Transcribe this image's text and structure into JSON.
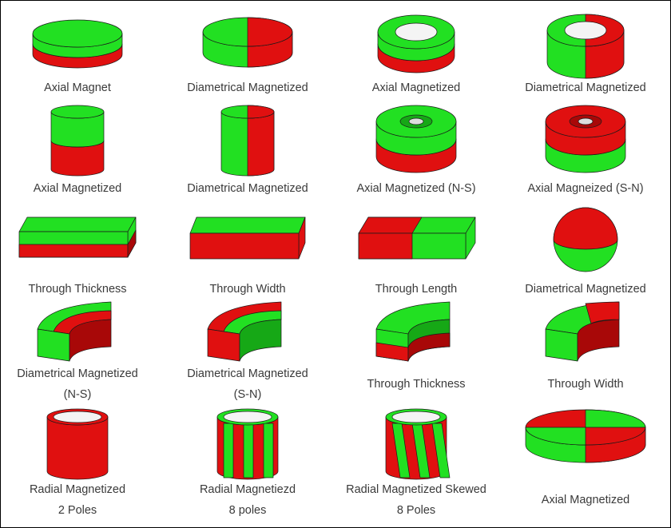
{
  "rows": [
    [
      {
        "lines": [
          "Axial Magnet"
        ]
      },
      {
        "lines": [
          "Diametrical Magnetized"
        ]
      },
      {
        "lines": [
          "Axial Magnetized"
        ]
      },
      {
        "lines": [
          "Diametrical Magnetized"
        ]
      }
    ],
    [
      {
        "lines": [
          "Axial Magnetized"
        ]
      },
      {
        "lines": [
          "Diametrical Magnetized"
        ]
      },
      {
        "lines": [
          "Axial Magnetized (N-S)"
        ]
      },
      {
        "lines": [
          "Axial Magneized (S-N)"
        ]
      }
    ],
    [
      {
        "lines": [
          "Through Thickness"
        ]
      },
      {
        "lines": [
          "Through Width"
        ]
      },
      {
        "lines": [
          "Through Length"
        ]
      },
      {
        "lines": [
          "Diametrical Magnetized"
        ]
      }
    ],
    [
      {
        "lines": [
          "Diametrical Magnetized",
          "(N-S)"
        ]
      },
      {
        "lines": [
          "Diametrical Magnetized",
          "(S-N)"
        ]
      },
      {
        "lines": [
          "Through Thickness"
        ]
      },
      {
        "lines": [
          "Through Width"
        ]
      }
    ],
    [
      {
        "lines": [
          "Radial Magnetized",
          "2 Poles"
        ]
      },
      {
        "lines": [
          "Radial Magnetiezd",
          "8 poles"
        ]
      },
      {
        "lines": [
          "Radial Magnetized Skewed",
          "8 Poles"
        ]
      },
      {
        "lines": [
          "Axial Magnetized"
        ]
      }
    ]
  ]
}
